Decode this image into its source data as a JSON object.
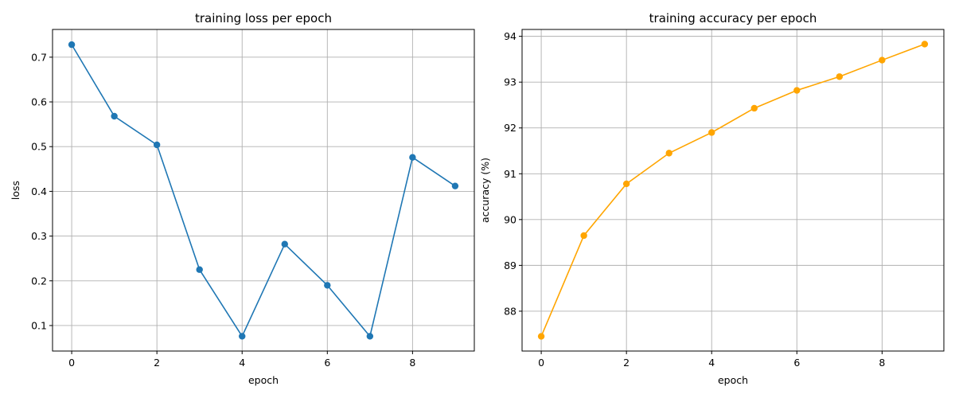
{
  "chart_data": [
    {
      "type": "line",
      "title": "training loss per epoch",
      "xlabel": "epoch",
      "ylabel": "loss",
      "x": [
        0,
        1,
        2,
        3,
        4,
        5,
        6,
        7,
        8,
        9
      ],
      "series": [
        {
          "values": [
            0.728,
            0.568,
            0.504,
            0.225,
            0.076,
            0.282,
            0.19,
            0.076,
            0.476,
            0.412
          ],
          "color": "#1f77b4"
        }
      ],
      "xlim": [
        -0.45,
        9.45
      ],
      "ylim": [
        0.043,
        0.762
      ],
      "xticks": [
        0,
        2,
        4,
        6,
        8
      ],
      "yticks": [
        0.1,
        0.2,
        0.3,
        0.4,
        0.5,
        0.6,
        0.7
      ],
      "ytick_labels": [
        "0.1",
        "0.2",
        "0.3",
        "0.4",
        "0.5",
        "0.6",
        "0.7"
      ],
      "grid": true
    },
    {
      "type": "line",
      "title": "training accuracy per epoch",
      "xlabel": "epoch",
      "ylabel": "accuracy (%)",
      "x": [
        0,
        1,
        2,
        3,
        4,
        5,
        6,
        7,
        8,
        9
      ],
      "series": [
        {
          "values": [
            87.45,
            89.65,
            90.78,
            91.45,
            91.9,
            92.43,
            92.82,
            93.12,
            93.48,
            93.83
          ],
          "color": "#ffa500"
        }
      ],
      "xlim": [
        -0.45,
        9.45
      ],
      "ylim": [
        87.13,
        94.15
      ],
      "xticks": [
        0,
        2,
        4,
        6,
        8
      ],
      "yticks": [
        88,
        89,
        90,
        91,
        92,
        93,
        94
      ],
      "ytick_labels": [
        "88",
        "89",
        "90",
        "91",
        "92",
        "93",
        "94"
      ],
      "grid": true
    }
  ]
}
